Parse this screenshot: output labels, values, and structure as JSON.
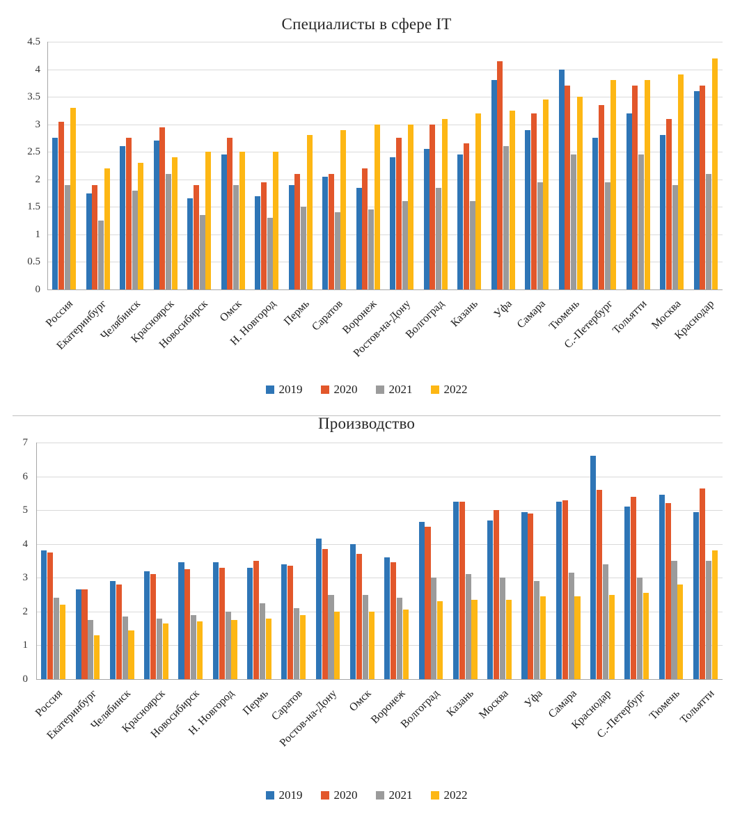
{
  "chart_data": [
    {
      "type": "bar",
      "title": "Специалисты в сфере IT",
      "categories": [
        "Россия",
        "Екатеринбург",
        "Челябинск",
        "Красноярск",
        "Новосибирск",
        "Омск",
        "Н. Новгород",
        "Пермь",
        "Саратов",
        "Воронеж",
        "Ростов-на-Дону",
        "Волгоград",
        "Казань",
        "Уфа",
        "Самара",
        "Тюмень",
        "С.-Петербург",
        "Тольятти",
        "Москва",
        "Краснодар"
      ],
      "series": [
        {
          "name": "2019",
          "color": "#2e75b6",
          "values": [
            2.75,
            1.75,
            2.6,
            2.7,
            1.65,
            2.45,
            1.7,
            1.9,
            2.05,
            1.85,
            2.4,
            2.55,
            2.45,
            3.8,
            2.9,
            4.0,
            2.75,
            3.2,
            2.8,
            3.6
          ]
        },
        {
          "name": "2020",
          "color": "#e2572b",
          "values": [
            3.05,
            1.9,
            2.75,
            2.95,
            1.9,
            2.75,
            1.95,
            2.1,
            2.1,
            2.2,
            2.75,
            3.0,
            2.65,
            4.15,
            3.2,
            3.7,
            3.35,
            3.7,
            3.1,
            3.7
          ]
        },
        {
          "name": "2021",
          "color": "#9b9b9b",
          "values": [
            1.9,
            1.25,
            1.8,
            2.1,
            1.35,
            1.9,
            1.3,
            1.5,
            1.4,
            1.45,
            1.6,
            1.85,
            1.6,
            2.6,
            1.95,
            2.45,
            1.95,
            2.45,
            1.9,
            2.1
          ]
        },
        {
          "name": "2022",
          "color": "#fdb714",
          "values": [
            3.3,
            2.2,
            2.3,
            2.4,
            2.5,
            2.5,
            2.5,
            2.8,
            2.9,
            3.0,
            3.0,
            3.1,
            3.2,
            3.25,
            3.45,
            3.5,
            3.8,
            3.8,
            3.9,
            4.2
          ]
        }
      ],
      "ylim": [
        0,
        4.5
      ],
      "ytick_step": 0.5,
      "grid": true,
      "legend_position": "bottom",
      "legend": [
        "2019",
        "2020",
        "2021",
        "2022"
      ]
    },
    {
      "type": "bar",
      "title": "Производство",
      "categories": [
        "Россия",
        "Екатеринбург",
        "Челябинск",
        "Красноярск",
        "Новосибирск",
        "Н. Новгород",
        "Пермь",
        "Саратов",
        "Ростов-на-Дону",
        "Омск",
        "Воронеж",
        "Волгоград",
        "Казань",
        "Москва",
        "Уфа",
        "Самара",
        "Краснодар",
        "С.-Петербург",
        "Тюмень",
        "Тольятти"
      ],
      "series": [
        {
          "name": "2019",
          "color": "#2e75b6",
          "values": [
            3.8,
            2.65,
            2.9,
            3.2,
            3.45,
            3.45,
            3.3,
            3.4,
            4.15,
            4.0,
            3.6,
            4.65,
            5.25,
            4.7,
            4.95,
            5.25,
            6.6,
            5.1,
            5.45,
            4.95
          ]
        },
        {
          "name": "2020",
          "color": "#e2572b",
          "values": [
            3.75,
            2.65,
            2.8,
            3.1,
            3.25,
            3.3,
            3.5,
            3.35,
            3.85,
            3.7,
            3.45,
            4.5,
            5.25,
            5.0,
            4.9,
            5.3,
            5.6,
            5.4,
            5.2,
            5.65
          ]
        },
        {
          "name": "2021",
          "color": "#9b9b9b",
          "values": [
            2.4,
            1.75,
            1.85,
            1.8,
            1.9,
            2.0,
            2.25,
            2.1,
            2.5,
            2.5,
            2.4,
            3.0,
            3.1,
            3.0,
            2.9,
            3.15,
            3.4,
            3.0,
            3.5,
            3.5
          ]
        },
        {
          "name": "2022",
          "color": "#fdb714",
          "values": [
            2.2,
            1.3,
            1.45,
            1.65,
            1.7,
            1.75,
            1.8,
            1.9,
            2.0,
            2.0,
            2.05,
            2.3,
            2.35,
            2.35,
            2.45,
            2.45,
            2.5,
            2.55,
            2.8,
            3.8
          ]
        }
      ],
      "ylim": [
        0,
        7
      ],
      "ytick_step": 1,
      "grid": true,
      "legend_position": "bottom",
      "legend": [
        "2019",
        "2020",
        "2021",
        "2022"
      ]
    }
  ]
}
